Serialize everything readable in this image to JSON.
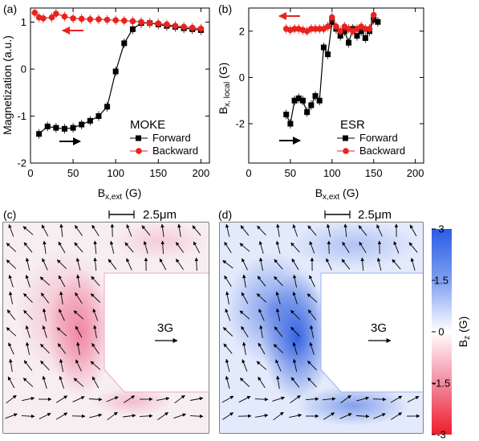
{
  "chart_data": [
    {
      "id": "a",
      "panel_label": "(a)",
      "type": "line",
      "xlabel_main": "B",
      "xlabel_sub": "x,ext",
      "xlabel_unit": " (G)",
      "ylabel": "Magnetization (a.u.)",
      "xlim": [
        0,
        210
      ],
      "ylim": [
        -2,
        1.3
      ],
      "xticks": [
        "0",
        "50",
        "100",
        "150",
        "200"
      ],
      "yticks": [
        "-2",
        "-1",
        "0",
        "1"
      ],
      "ytick_values": [
        -2,
        -1,
        0,
        1
      ],
      "xtick_values": [
        0,
        50,
        100,
        150,
        200
      ],
      "annotation": "MOKE",
      "legend_position": "bottom-right",
      "series": [
        {
          "name": "Forward",
          "color": "#000000",
          "marker": "square",
          "x": [
            10,
            20,
            30,
            40,
            50,
            60,
            70,
            80,
            90,
            100,
            110,
            120,
            130,
            140,
            150,
            160,
            170,
            180,
            190,
            200
          ],
          "y": [
            -1.38,
            -1.22,
            -1.25,
            -1.27,
            -1.25,
            -1.18,
            -1.1,
            -1.0,
            -0.8,
            -0.05,
            0.55,
            0.85,
            0.98,
            0.98,
            0.95,
            0.92,
            0.9,
            0.87,
            0.85,
            0.83
          ]
        },
        {
          "name": "Backward",
          "color": "#e8231e",
          "marker": "circle",
          "x": [
            5,
            10,
            15,
            25,
            30,
            40,
            50,
            60,
            70,
            80,
            90,
            100,
            110,
            120,
            130,
            140,
            150,
            160,
            170,
            180,
            190,
            200
          ],
          "y": [
            1.2,
            1.1,
            1.08,
            1.1,
            1.18,
            1.12,
            1.08,
            1.07,
            1.06,
            1.06,
            1.05,
            1.04,
            1.03,
            1.02,
            1.0,
            0.98,
            0.97,
            0.95,
            0.92,
            0.9,
            0.88,
            0.86
          ]
        }
      ]
    },
    {
      "id": "b",
      "panel_label": "(b)",
      "type": "line",
      "xlabel_main": "B",
      "xlabel_sub": "x,ext",
      "xlabel_unit": " (G)",
      "ylabel_main": "B",
      "ylabel_sub": "x, local",
      "ylabel_unit": " (G)",
      "xlim": [
        0,
        210
      ],
      "ylim": [
        -3.7,
        3.0
      ],
      "xticks": [
        "0",
        "50",
        "100",
        "150",
        "200"
      ],
      "yticks": [
        "-2",
        "0",
        "2"
      ],
      "ytick_values": [
        -2,
        0,
        2
      ],
      "xtick_values": [
        0,
        50,
        100,
        150,
        200
      ],
      "annotation": "ESR",
      "legend_position": "bottom-right",
      "series": [
        {
          "name": "Forward",
          "color": "#000000",
          "marker": "square",
          "x": [
            45,
            50,
            55,
            60,
            65,
            70,
            75,
            80,
            85,
            90,
            95,
            100,
            105,
            110,
            115,
            120,
            125,
            130,
            135,
            140,
            145,
            150,
            155
          ],
          "y": [
            -1.6,
            -2.0,
            -1.0,
            -0.9,
            -1.0,
            -1.5,
            -1.2,
            -0.8,
            -1.0,
            1.3,
            1.0,
            2.4,
            2.1,
            1.8,
            2.0,
            1.5,
            2.1,
            1.8,
            2.0,
            1.7,
            2.0,
            2.5,
            2.4
          ]
        },
        {
          "name": "Backward",
          "color": "#e8231e",
          "marker": "circle",
          "x": [
            45,
            50,
            55,
            60,
            65,
            70,
            75,
            80,
            85,
            90,
            95,
            100,
            105,
            110,
            115,
            120,
            125,
            130,
            135,
            140,
            145,
            150
          ],
          "y": [
            2.1,
            2.05,
            2.1,
            2.1,
            2.05,
            2.0,
            2.1,
            2.1,
            2.1,
            2.1,
            2.2,
            2.6,
            2.2,
            2.0,
            2.2,
            2.1,
            2.0,
            2.1,
            2.2,
            2.1,
            2.1,
            2.7
          ]
        }
      ]
    },
    {
      "id": "c",
      "panel_label": "(c)",
      "type": "heatmap",
      "scale_label": "2.5μm",
      "field_label": "3G",
      "tint": "red"
    },
    {
      "id": "d",
      "panel_label": "(d)",
      "type": "heatmap",
      "scale_label": "2.5μm",
      "field_label": "3G",
      "tint": "blue"
    }
  ],
  "colorbar": {
    "label_main": "B",
    "label_sub": "z",
    "label_unit": " (G)",
    "ticks": [
      "3",
      "1.5",
      "0",
      "-1.5",
      "-3"
    ],
    "colors": [
      "#2a5ce6",
      "#ffffff",
      "#ee1c2a"
    ]
  }
}
